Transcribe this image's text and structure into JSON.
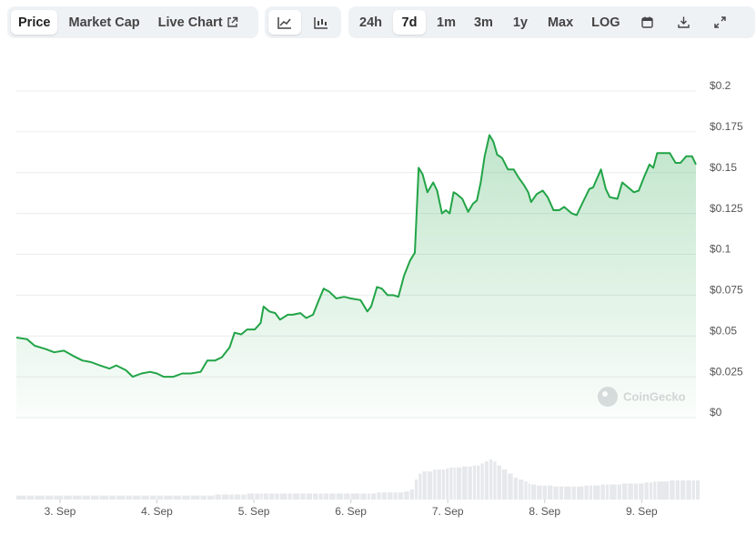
{
  "tabs": [
    "Price",
    "Market Cap",
    "Live Chart"
  ],
  "active_tab": 0,
  "active_view": 0,
  "ranges": [
    "24h",
    "7d",
    "1m",
    "3m",
    "1y",
    "Max",
    "LOG"
  ],
  "active_range": 1,
  "watermark": "CoinGecko",
  "chart_data": {
    "type": "line",
    "color": "#22a447",
    "volume_color": "#e6e8eb",
    "grid": true,
    "x": [
      2.55,
      2.66,
      2.74,
      2.85,
      2.94,
      3.04,
      3.13,
      3.23,
      3.32,
      3.41,
      3.51,
      3.58,
      3.68,
      3.75,
      3.84,
      3.93,
      4.0,
      4.07,
      4.17,
      4.26,
      4.35,
      4.45,
      4.52,
      4.6,
      4.67,
      4.75,
      4.8,
      4.87,
      4.93,
      5.01,
      5.07,
      5.1,
      5.16,
      5.22,
      5.27,
      5.35,
      5.4,
      5.48,
      5.54,
      5.61,
      5.67,
      5.72,
      5.78,
      5.85,
      5.93,
      6.0,
      6.1,
      6.17,
      6.21,
      6.27,
      6.32,
      6.38,
      6.44,
      6.49,
      6.55,
      6.61,
      6.66,
      6.7,
      6.74,
      6.79,
      6.85,
      6.89,
      6.94,
      6.98,
      7.02,
      7.06,
      7.09,
      7.15,
      7.21,
      7.26,
      7.3,
      7.34,
      7.38,
      7.43,
      7.47,
      7.51,
      7.56,
      7.62,
      7.68,
      7.73,
      7.79,
      7.83,
      7.86,
      7.92,
      7.98,
      8.03,
      8.09,
      8.15,
      8.2,
      8.28,
      8.33,
      8.41,
      8.46,
      8.5,
      8.58,
      8.63,
      8.67,
      8.75,
      8.8,
      8.86,
      8.92,
      8.97,
      9.03,
      9.08,
      9.12,
      9.16,
      9.29,
      9.35,
      9.4,
      9.46,
      9.52,
      9.56
    ],
    "values": [
      0.049,
      0.048,
      0.044,
      0.042,
      0.04,
      0.041,
      0.038,
      0.035,
      0.034,
      0.032,
      0.03,
      0.032,
      0.029,
      0.025,
      0.027,
      0.028,
      0.027,
      0.025,
      0.025,
      0.027,
      0.027,
      0.028,
      0.035,
      0.035,
      0.037,
      0.043,
      0.052,
      0.051,
      0.054,
      0.054,
      0.058,
      0.068,
      0.065,
      0.064,
      0.06,
      0.063,
      0.063,
      0.064,
      0.061,
      0.063,
      0.072,
      0.079,
      0.077,
      0.073,
      0.074,
      0.073,
      0.072,
      0.065,
      0.068,
      0.08,
      0.079,
      0.075,
      0.075,
      0.074,
      0.087,
      0.096,
      0.101,
      0.153,
      0.149,
      0.138,
      0.144,
      0.139,
      0.125,
      0.127,
      0.125,
      0.138,
      0.137,
      0.134,
      0.126,
      0.131,
      0.133,
      0.144,
      0.16,
      0.173,
      0.169,
      0.161,
      0.159,
      0.152,
      0.152,
      0.147,
      0.142,
      0.138,
      0.132,
      0.137,
      0.139,
      0.135,
      0.127,
      0.127,
      0.129,
      0.125,
      0.124,
      0.134,
      0.14,
      0.141,
      0.152,
      0.14,
      0.135,
      0.134,
      0.144,
      0.141,
      0.138,
      0.139,
      0.148,
      0.155,
      0.153,
      0.162,
      0.162,
      0.156,
      0.156,
      0.16,
      0.16,
      0.155
    ],
    "volume": [
      4,
      4,
      4,
      4,
      4,
      4,
      4,
      4,
      4,
      4,
      4,
      4,
      4,
      4,
      4,
      4,
      4,
      4,
      4,
      4,
      4,
      4,
      4,
      5,
      5,
      5,
      5,
      5,
      6,
      6,
      6,
      6,
      6,
      6,
      6,
      6,
      6,
      6,
      6,
      6,
      6,
      6,
      6,
      6,
      6,
      6,
      6,
      6,
      6,
      7,
      7,
      7,
      7,
      7,
      8,
      10,
      20,
      26,
      28,
      28,
      30,
      30,
      30,
      31,
      32,
      32,
      32,
      33,
      33,
      34,
      34,
      36,
      38,
      40,
      38,
      34,
      30,
      26,
      22,
      20,
      18,
      16,
      15,
      14,
      14,
      14,
      13,
      13,
      13,
      13,
      13,
      14,
      14,
      14,
      15,
      15,
      15,
      15,
      16,
      16,
      16,
      16,
      17,
      17,
      18,
      18,
      19,
      19,
      19,
      19,
      19,
      19
    ],
    "xlim": [
      2.55,
      9.56
    ],
    "xticks": [
      {
        "value": 3,
        "label": "3. Sep"
      },
      {
        "value": 4,
        "label": "4. Sep"
      },
      {
        "value": 5,
        "label": "5. Sep"
      },
      {
        "value": 6,
        "label": "6. Sep"
      },
      {
        "value": 7,
        "label": "7. Sep"
      },
      {
        "value": 8,
        "label": "8. Sep"
      },
      {
        "value": 9,
        "label": "9. Sep"
      }
    ],
    "ylim": [
      0,
      0.2
    ],
    "yticks": [
      {
        "value": 0,
        "label": "$0"
      },
      {
        "value": 0.025,
        "label": "$0.025"
      },
      {
        "value": 0.05,
        "label": "$0.05"
      },
      {
        "value": 0.075,
        "label": "$0.075"
      },
      {
        "value": 0.1,
        "label": "$0.1"
      },
      {
        "value": 0.125,
        "label": "$0.125"
      },
      {
        "value": 0.15,
        "label": "$0.15"
      },
      {
        "value": 0.175,
        "label": "$0.175"
      },
      {
        "value": 0.2,
        "label": "$0.2"
      }
    ]
  }
}
